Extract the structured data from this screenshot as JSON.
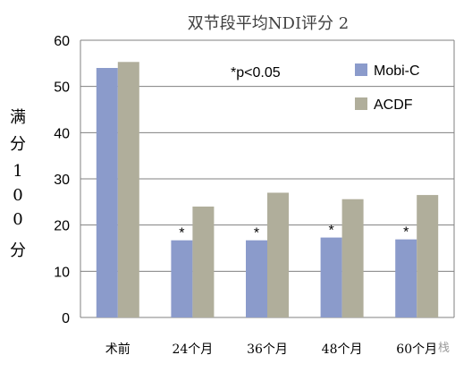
{
  "chart_data": {
    "type": "bar",
    "title": "双节段平均NDI评分 2",
    "ylabel_chars": [
      "满",
      "分",
      "1",
      "0",
      "0",
      "分"
    ],
    "categories": [
      "术前",
      "24个月",
      "36个月",
      "48个月",
      "60个月"
    ],
    "ylim": [
      0,
      60
    ],
    "yticks": [
      0,
      10,
      20,
      30,
      40,
      50,
      60
    ],
    "grid": true,
    "legend_position": "top-right",
    "annotation": "*p<0.05",
    "significance": [
      false,
      true,
      true,
      true,
      true
    ],
    "significance_marker": "*",
    "series": [
      {
        "name": "Mobi-C",
        "color": "#8b9bcb",
        "values": [
          54.0,
          16.7,
          16.7,
          17.3,
          16.9
        ]
      },
      {
        "name": "ACDF",
        "color": "#b0ae9b",
        "values": [
          55.3,
          24.0,
          27.0,
          25.6,
          26.5
        ]
      }
    ]
  },
  "watermark": "栈"
}
